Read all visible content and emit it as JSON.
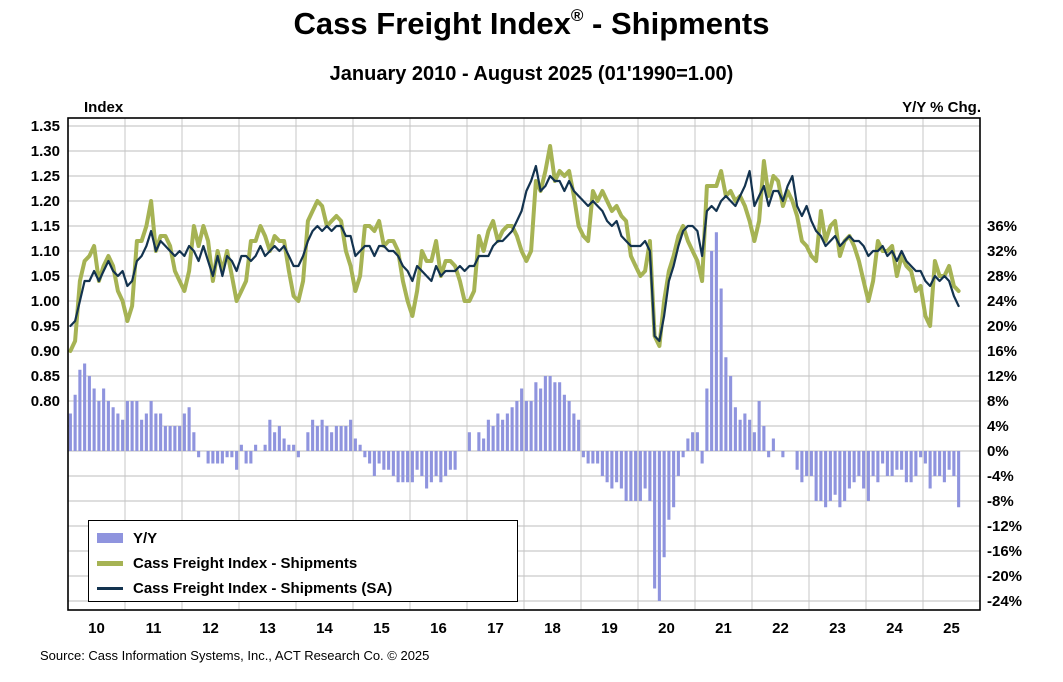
{
  "title": {
    "prefix": "Cass Freight Index",
    "registered": "®",
    "suffix": " - Shipments"
  },
  "subtitle": "January 2010 - August 2025 (01'1990=1.00)",
  "source": "Source: Cass Information Systems, Inc., ACT Research Co. © 2025",
  "axis": {
    "left_label": "Index",
    "right_label": "Y/Y % Chg.",
    "left_ticks": [
      "1.35",
      "1.30",
      "1.25",
      "1.20",
      "1.15",
      "1.10",
      "1.05",
      "1.00",
      "0.95",
      "0.90",
      "0.85",
      "0.80"
    ],
    "right_ticks": [
      "36%",
      "32%",
      "28%",
      "24%",
      "20%",
      "16%",
      "12%",
      "8%",
      "4%",
      "0%",
      "-4%",
      "-8%",
      "-12%",
      "-16%",
      "-20%",
      "-24%"
    ],
    "x_ticks": [
      "10",
      "11",
      "12",
      "13",
      "14",
      "15",
      "16",
      "17",
      "18",
      "19",
      "20",
      "21",
      "22",
      "23",
      "24",
      "25"
    ]
  },
  "legend": {
    "items": [
      {
        "label": "Y/Y",
        "type": "bar",
        "color": "#8f94de"
      },
      {
        "label": "Cass Freight Index - Shipments",
        "type": "line",
        "color": "#a6b354"
      },
      {
        "label": "Cass Freight Index - Shipments (SA)",
        "type": "line",
        "color": "#13334f"
      }
    ]
  },
  "colors": {
    "bars": "#8f94de",
    "shipments": "#a6b354",
    "shipments_sa": "#13334f",
    "grid": "#bdbdbd",
    "grid_vertical": "#c7c7c7",
    "border": "#000000",
    "background": "#ffffff"
  },
  "chart_data": {
    "type": "combo-line-bar",
    "title": "Cass Freight Index - Shipments",
    "subtitle": "January 2010 - August 2025 (01'1990=1.00)",
    "x_monthly_start": "2010-01",
    "x_monthly_end": "2025-08",
    "x_year_labels": [
      "10",
      "11",
      "12",
      "13",
      "14",
      "15",
      "16",
      "17",
      "18",
      "19",
      "20",
      "21",
      "22",
      "23",
      "24",
      "25"
    ],
    "left_axis": {
      "label": "Index",
      "tick_min": 0.8,
      "tick_max": 1.35,
      "step": 0.05
    },
    "right_axis": {
      "label": "Y/Y % Chg.",
      "tick_min": -24,
      "tick_max": 36,
      "step": 4
    },
    "grid": true,
    "legend_position": "bottom-left-inside",
    "series": [
      {
        "name": "Y/Y",
        "type": "bar",
        "axis": "right",
        "color": "#8f94de",
        "values": [
          6,
          9,
          13,
          14,
          12,
          10,
          8,
          10,
          8,
          7,
          6,
          5,
          8,
          8,
          8,
          5,
          6,
          8,
          6,
          6,
          4,
          4,
          4,
          4,
          6,
          7,
          3,
          -1,
          0,
          -2,
          -2,
          -2,
          -2,
          -1,
          -1,
          -3,
          1,
          -2,
          -2,
          1,
          0,
          1,
          5,
          3,
          4,
          2,
          1,
          1,
          -1,
          0,
          3,
          5,
          4,
          5,
          4,
          3,
          4,
          4,
          4,
          5,
          2,
          1,
          -1,
          -2,
          -4,
          -2,
          -3,
          -3,
          -4,
          -5,
          -5,
          -5,
          -5,
          -3,
          -4,
          -6,
          -5,
          -4,
          -5,
          -4,
          -3,
          -3,
          0,
          0,
          3,
          0,
          3,
          2,
          5,
          4,
          6,
          5,
          6,
          7,
          8,
          10,
          8,
          8,
          11,
          10,
          12,
          12,
          11,
          11,
          9,
          8,
          6,
          5,
          -1,
          -2,
          -2,
          -2,
          -4,
          -5,
          -6,
          -5,
          -6,
          -8,
          -8,
          -8,
          -8,
          -6,
          -8,
          -22,
          -24,
          -17,
          -11,
          -9,
          -4,
          -1,
          2,
          3,
          3,
          -2,
          10,
          32,
          35,
          26,
          15,
          12,
          7,
          5,
          6,
          5,
          3,
          8,
          4,
          -1,
          2,
          0,
          -1,
          0,
          0,
          -3,
          -5,
          -4,
          -4,
          -8,
          -8,
          -9,
          -8,
          -7,
          -9,
          -8,
          -6,
          -5,
          -4,
          -6,
          -8,
          -4,
          -5,
          -2,
          -4,
          -4,
          -3,
          -3,
          -5,
          -5,
          -4,
          -1,
          -2,
          -6,
          -4,
          -4,
          -5,
          -3,
          -4,
          -9
        ]
      },
      {
        "name": "Cass Freight Index - Shipments",
        "type": "line",
        "axis": "left",
        "color": "#a6b354",
        "values": [
          0.9,
          0.92,
          1.04,
          1.08,
          1.09,
          1.11,
          1.04,
          1.07,
          1.09,
          1.07,
          1.02,
          1.0,
          0.96,
          0.99,
          1.12,
          1.12,
          1.15,
          1.2,
          1.1,
          1.13,
          1.13,
          1.11,
          1.06,
          1.04,
          1.02,
          1.06,
          1.15,
          1.11,
          1.15,
          1.12,
          1.04,
          1.1,
          1.06,
          1.1,
          1.05,
          1.0,
          1.02,
          1.04,
          1.12,
          1.12,
          1.15,
          1.13,
          1.1,
          1.13,
          1.12,
          1.12,
          1.06,
          1.01,
          1.0,
          1.04,
          1.16,
          1.18,
          1.2,
          1.19,
          1.15,
          1.16,
          1.17,
          1.16,
          1.1,
          1.07,
          1.02,
          1.05,
          1.15,
          1.15,
          1.14,
          1.16,
          1.11,
          1.12,
          1.12,
          1.1,
          1.04,
          1.0,
          0.97,
          1.02,
          1.1,
          1.08,
          1.08,
          1.12,
          1.05,
          1.08,
          1.08,
          1.07,
          1.04,
          1.0,
          1.0,
          1.02,
          1.13,
          1.1,
          1.14,
          1.16,
          1.12,
          1.14,
          1.15,
          1.15,
          1.13,
          1.1,
          1.08,
          1.1,
          1.24,
          1.22,
          1.26,
          1.31,
          1.24,
          1.26,
          1.25,
          1.26,
          1.21,
          1.15,
          1.13,
          1.12,
          1.22,
          1.2,
          1.22,
          1.2,
          1.18,
          1.19,
          1.17,
          1.16,
          1.09,
          1.07,
          1.05,
          1.06,
          1.12,
          0.93,
          0.91,
          1.0,
          1.06,
          1.09,
          1.13,
          1.15,
          1.12,
          1.1,
          1.08,
          1.04,
          1.23,
          1.23,
          1.23,
          1.26,
          1.21,
          1.22,
          1.2,
          1.21,
          1.19,
          1.16,
          1.12,
          1.16,
          1.28,
          1.21,
          1.25,
          1.24,
          1.19,
          1.22,
          1.2,
          1.17,
          1.12,
          1.11,
          1.09,
          1.08,
          1.18,
          1.12,
          1.15,
          1.16,
          1.09,
          1.12,
          1.13,
          1.11,
          1.08,
          1.04,
          1.0,
          1.04,
          1.12,
          1.1,
          1.1,
          1.11,
          1.05,
          1.09,
          1.07,
          1.06,
          1.02,
          1.03,
          0.97,
          0.95,
          1.08,
          1.05,
          1.05,
          1.07,
          1.03,
          1.02
        ]
      },
      {
        "name": "Cass Freight Index - Shipments (SA)",
        "type": "line",
        "axis": "left",
        "color": "#13334f",
        "values": [
          0.95,
          0.96,
          1.0,
          1.04,
          1.04,
          1.06,
          1.04,
          1.06,
          1.08,
          1.06,
          1.05,
          1.06,
          1.03,
          1.04,
          1.08,
          1.09,
          1.11,
          1.14,
          1.1,
          1.12,
          1.11,
          1.1,
          1.09,
          1.1,
          1.09,
          1.11,
          1.1,
          1.08,
          1.11,
          1.08,
          1.05,
          1.09,
          1.05,
          1.09,
          1.08,
          1.06,
          1.09,
          1.09,
          1.08,
          1.09,
          1.11,
          1.09,
          1.1,
          1.11,
          1.1,
          1.11,
          1.09,
          1.07,
          1.07,
          1.09,
          1.12,
          1.14,
          1.15,
          1.14,
          1.15,
          1.14,
          1.15,
          1.15,
          1.13,
          1.13,
          1.09,
          1.1,
          1.11,
          1.11,
          1.09,
          1.11,
          1.11,
          1.1,
          1.1,
          1.09,
          1.07,
          1.06,
          1.04,
          1.07,
          1.06,
          1.05,
          1.04,
          1.07,
          1.05,
          1.06,
          1.06,
          1.06,
          1.07,
          1.06,
          1.07,
          1.07,
          1.09,
          1.09,
          1.09,
          1.11,
          1.12,
          1.12,
          1.13,
          1.14,
          1.16,
          1.18,
          1.22,
          1.24,
          1.27,
          1.22,
          1.23,
          1.25,
          1.24,
          1.24,
          1.22,
          1.24,
          1.22,
          1.21,
          1.2,
          1.19,
          1.2,
          1.19,
          1.18,
          1.16,
          1.15,
          1.16,
          1.13,
          1.12,
          1.11,
          1.11,
          1.11,
          1.12,
          1.1,
          0.93,
          0.92,
          0.97,
          1.04,
          1.07,
          1.11,
          1.14,
          1.15,
          1.15,
          1.14,
          1.09,
          1.18,
          1.19,
          1.18,
          1.2,
          1.21,
          1.2,
          1.19,
          1.21,
          1.23,
          1.26,
          1.19,
          1.21,
          1.23,
          1.19,
          1.22,
          1.22,
          1.2,
          1.23,
          1.25,
          1.19,
          1.17,
          1.19,
          1.16,
          1.14,
          1.13,
          1.11,
          1.12,
          1.13,
          1.11,
          1.12,
          1.13,
          1.12,
          1.12,
          1.11,
          1.09,
          1.1,
          1.1,
          1.11,
          1.09,
          1.1,
          1.08,
          1.1,
          1.08,
          1.07,
          1.06,
          1.06,
          1.04,
          1.03,
          1.05,
          1.04,
          1.05,
          1.04,
          1.01,
          0.99
        ]
      }
    ]
  }
}
